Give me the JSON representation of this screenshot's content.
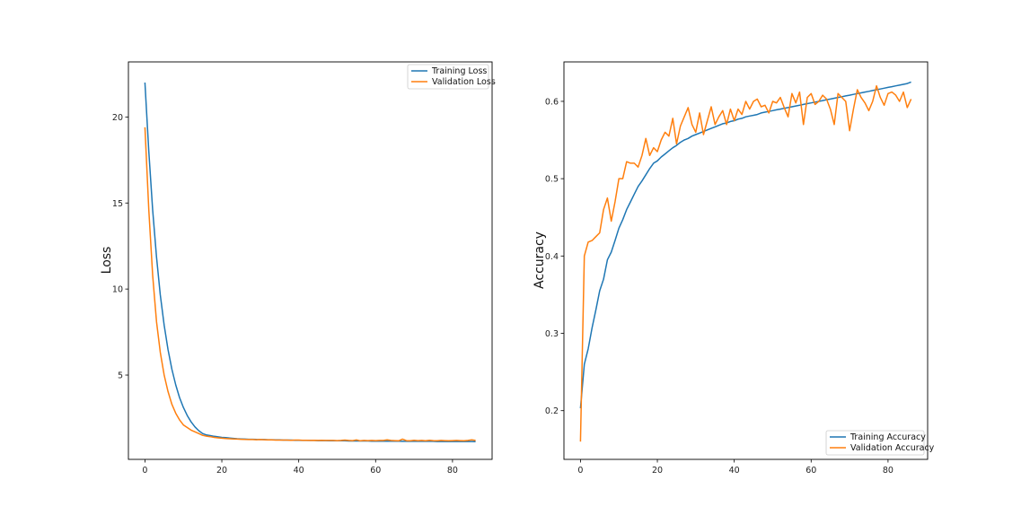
{
  "colors": {
    "series_1": "#1f77b4",
    "series_2": "#ff7f0e",
    "axis": "#000000",
    "legend_border": "#cccccc"
  },
  "chart_data": [
    {
      "type": "line",
      "xlabel": "",
      "ylabel": "Loss",
      "xlim": [
        -4.3,
        90.3
      ],
      "ylim": [
        0.1,
        23.2
      ],
      "xticks": [
        0,
        20,
        40,
        60,
        80
      ],
      "yticks": [
        5,
        10,
        15,
        20
      ],
      "grid": false,
      "legend_position": "upper right",
      "x": [
        0,
        1,
        2,
        3,
        4,
        5,
        6,
        7,
        8,
        9,
        10,
        11,
        12,
        13,
        14,
        15,
        16,
        17,
        18,
        19,
        20,
        21,
        22,
        23,
        24,
        25,
        26,
        27,
        28,
        29,
        30,
        31,
        32,
        33,
        34,
        35,
        36,
        37,
        38,
        39,
        40,
        41,
        42,
        43,
        44,
        45,
        46,
        47,
        48,
        49,
        50,
        51,
        52,
        53,
        54,
        55,
        56,
        57,
        58,
        59,
        60,
        61,
        62,
        63,
        64,
        65,
        66,
        67,
        68,
        69,
        70,
        71,
        72,
        73,
        74,
        75,
        76,
        77,
        78,
        79,
        80,
        81,
        82,
        83,
        84,
        85,
        86
      ],
      "series": [
        {
          "name": "Training Loss",
          "values": [
            22.0,
            18.0,
            14.6,
            11.86,
            9.66,
            7.9,
            6.48,
            5.34,
            4.43,
            3.7,
            3.12,
            2.65,
            2.28,
            1.99,
            1.77,
            1.6,
            1.52,
            1.48,
            1.44,
            1.41,
            1.38,
            1.36,
            1.34,
            1.32,
            1.3,
            1.29,
            1.28,
            1.27,
            1.27,
            1.26,
            1.25,
            1.25,
            1.24,
            1.24,
            1.23,
            1.23,
            1.22,
            1.22,
            1.22,
            1.21,
            1.21,
            1.2,
            1.2,
            1.2,
            1.2,
            1.19,
            1.19,
            1.19,
            1.18,
            1.18,
            1.18,
            1.18,
            1.18,
            1.17,
            1.17,
            1.17,
            1.17,
            1.17,
            1.17,
            1.16,
            1.16,
            1.16,
            1.16,
            1.16,
            1.16,
            1.16,
            1.16,
            1.15,
            1.15,
            1.15,
            1.15,
            1.15,
            1.15,
            1.15,
            1.15,
            1.15,
            1.14,
            1.14,
            1.14,
            1.14,
            1.14,
            1.14,
            1.14,
            1.14,
            1.14,
            1.14,
            1.13
          ]
        },
        {
          "name": "Validation Loss",
          "values": [
            19.4,
            14.6,
            10.8,
            8.1,
            6.32,
            5.0,
            4.04,
            3.3,
            2.78,
            2.4,
            2.1,
            1.95,
            1.8,
            1.7,
            1.6,
            1.5,
            1.45,
            1.42,
            1.38,
            1.35,
            1.33,
            1.31,
            1.3,
            1.29,
            1.28,
            1.27,
            1.26,
            1.25,
            1.25,
            1.24,
            1.25,
            1.24,
            1.23,
            1.23,
            1.22,
            1.22,
            1.22,
            1.22,
            1.21,
            1.22,
            1.22,
            1.21,
            1.21,
            1.2,
            1.21,
            1.2,
            1.21,
            1.2,
            1.2,
            1.2,
            1.19,
            1.2,
            1.22,
            1.2,
            1.19,
            1.23,
            1.18,
            1.2,
            1.19,
            1.2,
            1.19,
            1.2,
            1.2,
            1.23,
            1.2,
            1.19,
            1.18,
            1.28,
            1.19,
            1.18,
            1.21,
            1.19,
            1.2,
            1.18,
            1.21,
            1.19,
            1.18,
            1.2,
            1.19,
            1.18,
            1.19,
            1.2,
            1.19,
            1.18,
            1.2,
            1.23,
            1.2
          ]
        }
      ]
    },
    {
      "type": "line",
      "xlabel": "",
      "ylabel": "Accuracy",
      "xlim": [
        -4.3,
        90.3
      ],
      "ylim": [
        0.137,
        0.651
      ],
      "xticks": [
        0,
        20,
        40,
        60,
        80
      ],
      "yticks": [
        0.2,
        0.3,
        0.4,
        0.5,
        0.6
      ],
      "grid": false,
      "legend_position": "lower right",
      "x": [
        0,
        1,
        2,
        3,
        4,
        5,
        6,
        7,
        8,
        9,
        10,
        11,
        12,
        13,
        14,
        15,
        16,
        17,
        18,
        19,
        20,
        21,
        22,
        23,
        24,
        25,
        26,
        27,
        28,
        29,
        30,
        31,
        32,
        33,
        34,
        35,
        36,
        37,
        38,
        39,
        40,
        41,
        42,
        43,
        44,
        45,
        46,
        47,
        48,
        49,
        50,
        51,
        52,
        53,
        54,
        55,
        56,
        57,
        58,
        59,
        60,
        61,
        62,
        63,
        64,
        65,
        66,
        67,
        68,
        69,
        70,
        71,
        72,
        73,
        74,
        75,
        76,
        77,
        78,
        79,
        80,
        81,
        82,
        83,
        84,
        85,
        86
      ],
      "series": [
        {
          "name": "Training Accuracy",
          "values": [
            0.203,
            0.26,
            0.28,
            0.307,
            0.33,
            0.355,
            0.37,
            0.395,
            0.405,
            0.42,
            0.436,
            0.447,
            0.46,
            0.47,
            0.48,
            0.49,
            0.497,
            0.505,
            0.513,
            0.52,
            0.523,
            0.528,
            0.532,
            0.536,
            0.54,
            0.543,
            0.547,
            0.55,
            0.552,
            0.555,
            0.557,
            0.559,
            0.561,
            0.563,
            0.565,
            0.567,
            0.569,
            0.571,
            0.572,
            0.574,
            0.575,
            0.577,
            0.578,
            0.58,
            0.581,
            0.582,
            0.583,
            0.585,
            0.586,
            0.587,
            0.588,
            0.589,
            0.59,
            0.591,
            0.592,
            0.593,
            0.594,
            0.595,
            0.596,
            0.597,
            0.598,
            0.599,
            0.6,
            0.601,
            0.602,
            0.603,
            0.604,
            0.605,
            0.606,
            0.607,
            0.608,
            0.609,
            0.61,
            0.611,
            0.612,
            0.613,
            0.614,
            0.615,
            0.616,
            0.617,
            0.618,
            0.619,
            0.62,
            0.621,
            0.622,
            0.623,
            0.625
          ]
        },
        {
          "name": "Validation Accuracy",
          "values": [
            0.16,
            0.4,
            0.418,
            0.42,
            0.425,
            0.43,
            0.46,
            0.475,
            0.445,
            0.47,
            0.5,
            0.5,
            0.522,
            0.52,
            0.52,
            0.515,
            0.53,
            0.552,
            0.53,
            0.54,
            0.535,
            0.55,
            0.56,
            0.555,
            0.578,
            0.545,
            0.568,
            0.58,
            0.592,
            0.57,
            0.56,
            0.585,
            0.557,
            0.575,
            0.593,
            0.57,
            0.58,
            0.588,
            0.57,
            0.59,
            0.575,
            0.59,
            0.583,
            0.6,
            0.59,
            0.6,
            0.603,
            0.593,
            0.595,
            0.585,
            0.6,
            0.598,
            0.605,
            0.592,
            0.58,
            0.61,
            0.598,
            0.612,
            0.57,
            0.605,
            0.61,
            0.596,
            0.6,
            0.608,
            0.603,
            0.59,
            0.57,
            0.61,
            0.605,
            0.6,
            0.562,
            0.59,
            0.615,
            0.605,
            0.598,
            0.588,
            0.6,
            0.62,
            0.605,
            0.595,
            0.61,
            0.612,
            0.608,
            0.6,
            0.612,
            0.592,
            0.603
          ]
        }
      ]
    }
  ]
}
